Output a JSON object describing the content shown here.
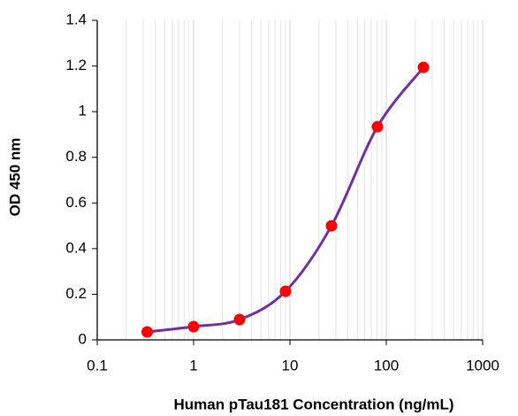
{
  "chart_data": {
    "type": "line",
    "smooth": true,
    "markers": true,
    "x_label": "Human pTau181 Concentration (ng/mL)",
    "y_label": "OD 450 nm",
    "xscale": "log",
    "grid": "x-log-minor",
    "x": [
      0.33,
      1,
      3,
      9,
      27,
      81,
      243
    ],
    "series": [
      {
        "line_color": "#7030a0",
        "color": "#ff0000",
        "values": [
          0.035,
          0.058,
          0.089,
          0.213,
          0.5,
          0.934,
          1.194
        ]
      }
    ],
    "xlim": [
      0.1,
      1000
    ],
    "xticks": [
      0.1,
      1,
      10,
      100,
      1000
    ],
    "ylim": [
      0,
      1.4
    ],
    "yticks": [
      0,
      0.2,
      0.4,
      0.6,
      0.8,
      1,
      1.2,
      1.4
    ]
  }
}
